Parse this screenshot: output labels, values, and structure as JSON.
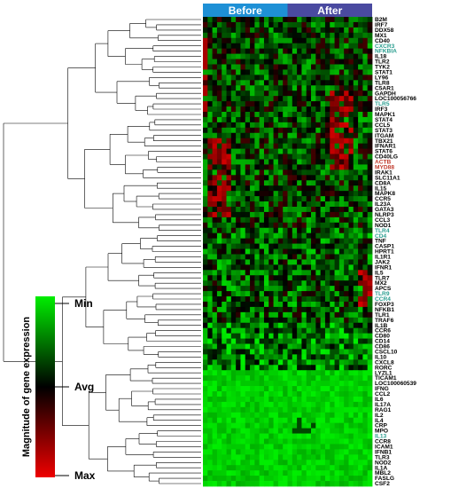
{
  "chart_data": {
    "type": "heatmap",
    "title": "",
    "groups": [
      {
        "label": "Before",
        "color": "#1e90d6"
      },
      {
        "label": "After",
        "color": "#4a4aa0"
      }
    ],
    "genes": [
      {
        "name": "B2M",
        "color": "#000000"
      },
      {
        "name": "IRF7",
        "color": "#000000"
      },
      {
        "name": "DDX58",
        "color": "#000000"
      },
      {
        "name": "MX1",
        "color": "#000000"
      },
      {
        "name": "CD40",
        "color": "#000000"
      },
      {
        "name": "CXCR3",
        "color": "#2a9d8f"
      },
      {
        "name": "NFKBIA",
        "color": "#2a9d8f"
      },
      {
        "name": "IL18",
        "color": "#000000"
      },
      {
        "name": "TLR2",
        "color": "#000000"
      },
      {
        "name": "TYK2",
        "color": "#000000"
      },
      {
        "name": "STAT1",
        "color": "#000000"
      },
      {
        "name": "LY96",
        "color": "#000000"
      },
      {
        "name": "TLR8",
        "color": "#000000"
      },
      {
        "name": "C5AR1",
        "color": "#000000"
      },
      {
        "name": "GAPDH",
        "color": "#000000"
      },
      {
        "name": "LOC100056766",
        "color": "#000000"
      },
      {
        "name": "TLR5",
        "color": "#2a9d8f"
      },
      {
        "name": "IRF3",
        "color": "#000000"
      },
      {
        "name": "MAPK1",
        "color": "#000000"
      },
      {
        "name": "STAT4",
        "color": "#000000"
      },
      {
        "name": "CCL5",
        "color": "#000000"
      },
      {
        "name": "STAT3",
        "color": "#000000"
      },
      {
        "name": "ITGAM",
        "color": "#000000"
      },
      {
        "name": "TBX21",
        "color": "#000000"
      },
      {
        "name": "IFNAR1",
        "color": "#000000"
      },
      {
        "name": "STAT6",
        "color": "#000000"
      },
      {
        "name": "CD40LG",
        "color": "#000000"
      },
      {
        "name": "ACTB",
        "color": "#c0392b"
      },
      {
        "name": "MYD88",
        "color": "#c0392b"
      },
      {
        "name": "IRAK1",
        "color": "#000000"
      },
      {
        "name": "SLC11A1",
        "color": "#000000"
      },
      {
        "name": "CD8A",
        "color": "#000000"
      },
      {
        "name": "IL15",
        "color": "#000000"
      },
      {
        "name": "MAPK8",
        "color": "#000000"
      },
      {
        "name": "CCR5",
        "color": "#000000"
      },
      {
        "name": "IL23A",
        "color": "#000000"
      },
      {
        "name": "GATA3",
        "color": "#000000"
      },
      {
        "name": "NLRP3",
        "color": "#000000"
      },
      {
        "name": "CCL3",
        "color": "#000000"
      },
      {
        "name": "NOD1",
        "color": "#000000"
      },
      {
        "name": "TLR4",
        "color": "#2a9d8f"
      },
      {
        "name": "CD4",
        "color": "#2a9d8f"
      },
      {
        "name": "TNF",
        "color": "#000000"
      },
      {
        "name": "CASP1",
        "color": "#000000"
      },
      {
        "name": "HPRT1",
        "color": "#000000"
      },
      {
        "name": "IL1R1",
        "color": "#000000"
      },
      {
        "name": "JAK2",
        "color": "#000000"
      },
      {
        "name": "IFNR1",
        "color": "#000000"
      },
      {
        "name": "IL5",
        "color": "#000000"
      },
      {
        "name": "TLR7",
        "color": "#000000"
      },
      {
        "name": "MX2",
        "color": "#000000"
      },
      {
        "name": "APCS",
        "color": "#000000"
      },
      {
        "name": "TLR9",
        "color": "#2a9d8f"
      },
      {
        "name": "CCR4",
        "color": "#2a9d8f"
      },
      {
        "name": "FOXP3",
        "color": "#000000"
      },
      {
        "name": "NFKB1",
        "color": "#000000"
      },
      {
        "name": "TLR1",
        "color": "#000000"
      },
      {
        "name": "TRAF6",
        "color": "#000000"
      },
      {
        "name": "IL1B",
        "color": "#000000"
      },
      {
        "name": "CCR6",
        "color": "#000000"
      },
      {
        "name": "CD80",
        "color": "#000000"
      },
      {
        "name": "CD14",
        "color": "#000000"
      },
      {
        "name": "CD86",
        "color": "#000000"
      },
      {
        "name": "CSCL10",
        "color": "#000000"
      },
      {
        "name": "IL10",
        "color": "#000000"
      },
      {
        "name": "CXCL8",
        "color": "#000000"
      },
      {
        "name": "RORC",
        "color": "#000000"
      },
      {
        "name": "LYZL1",
        "color": "#000000"
      },
      {
        "name": "TICAM1",
        "color": "#000000"
      },
      {
        "name": "LOC100060539",
        "color": "#000000"
      },
      {
        "name": "IFNG",
        "color": "#000000"
      },
      {
        "name": "CCL2",
        "color": "#000000"
      },
      {
        "name": "IL6",
        "color": "#000000"
      },
      {
        "name": "IL17A",
        "color": "#000000"
      },
      {
        "name": "RAG1",
        "color": "#000000"
      },
      {
        "name": "IL2",
        "color": "#000000"
      },
      {
        "name": "IL4",
        "color": "#000000"
      },
      {
        "name": "CRP",
        "color": "#000000"
      },
      {
        "name": "MPO",
        "color": "#000000"
      },
      {
        "name": "IL13",
        "color": "#2a9d8f"
      },
      {
        "name": "CCR8",
        "color": "#000000"
      },
      {
        "name": "ICAM1",
        "color": "#000000"
      },
      {
        "name": "IFNB1",
        "color": "#000000"
      },
      {
        "name": "TLR3",
        "color": "#000000"
      },
      {
        "name": "NOD2",
        "color": "#000000"
      },
      {
        "name": "IL1A",
        "color": "#000000"
      },
      {
        "name": "MBL2",
        "color": "#000000"
      },
      {
        "name": "FASLG",
        "color": "#000000"
      },
      {
        "name": "CSF2",
        "color": "#000000"
      }
    ],
    "n_samples_per_group": 18,
    "scale": {
      "title": "Magnitude of gene expression",
      "labels": [
        "Min",
        "Avg",
        "Max"
      ],
      "colors": [
        "#00ee00",
        "#000000",
        "#ee0000"
      ]
    },
    "dendrogram": "left"
  }
}
